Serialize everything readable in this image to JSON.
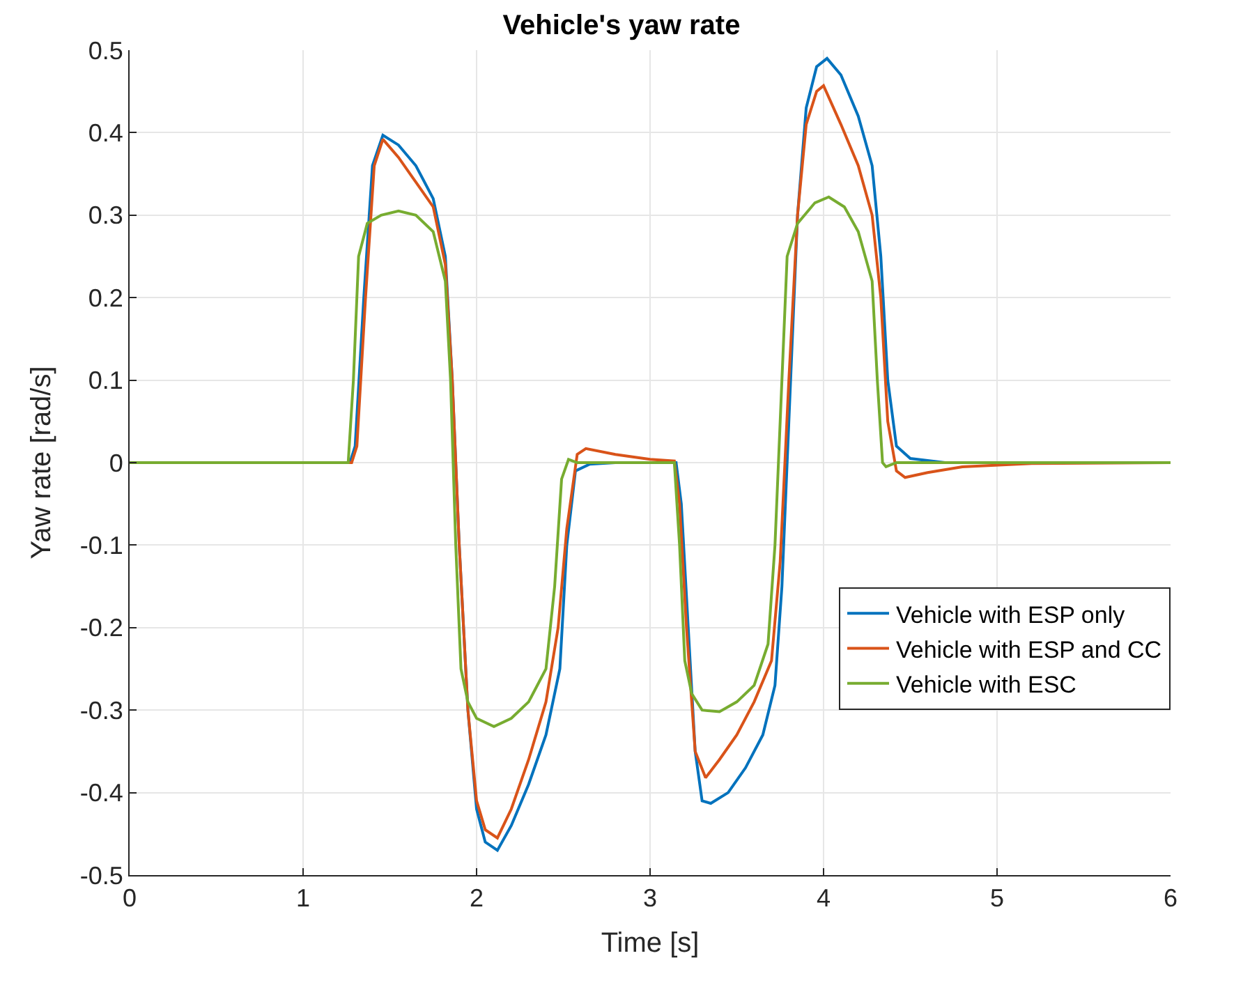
{
  "chart_data": {
    "type": "line",
    "title": "Vehicle's yaw rate",
    "xlabel": "Time [s]",
    "ylabel": "Yaw rate [rad/s]",
    "xlim": [
      0,
      6
    ],
    "xticks": [
      0,
      1,
      2,
      3,
      4,
      5,
      6
    ],
    "ylim": [
      -0.5,
      0.5
    ],
    "yticks": [
      -0.5,
      -0.4,
      -0.3,
      -0.2,
      -0.1,
      0,
      0.1,
      0.2,
      0.3,
      0.4,
      0.5
    ],
    "grid": true,
    "legend": "bottom right",
    "line_style": "solid",
    "series": [
      {
        "name": "Vehicle with ESP only",
        "color": "#0072bd",
        "x": [
          0,
          1.27,
          1.3,
          1.35,
          1.4,
          1.46,
          1.55,
          1.65,
          1.75,
          1.82,
          1.86,
          1.9,
          1.95,
          2.0,
          2.05,
          2.12,
          2.2,
          2.3,
          2.4,
          2.48,
          2.52,
          2.57,
          2.65,
          2.8,
          3.15,
          3.18,
          3.22,
          3.26,
          3.3,
          3.35,
          3.45,
          3.55,
          3.65,
          3.72,
          3.76,
          3.8,
          3.85,
          3.9,
          3.96,
          4.02,
          4.1,
          4.2,
          4.28,
          4.33,
          4.37,
          4.42,
          4.5,
          4.7,
          6
        ],
        "values": [
          0,
          0,
          0.02,
          0.2,
          0.36,
          0.397,
          0.385,
          0.36,
          0.32,
          0.25,
          0.1,
          -0.1,
          -0.3,
          -0.42,
          -0.46,
          -0.47,
          -0.44,
          -0.39,
          -0.33,
          -0.25,
          -0.1,
          -0.01,
          -0.002,
          0,
          0,
          -0.05,
          -0.2,
          -0.35,
          -0.41,
          -0.413,
          -0.4,
          -0.37,
          -0.33,
          -0.27,
          -0.15,
          0.05,
          0.3,
          0.43,
          0.48,
          0.49,
          0.47,
          0.42,
          0.36,
          0.25,
          0.1,
          0.02,
          0.005,
          0,
          0
        ]
      },
      {
        "name": "Vehicle with ESP and CC",
        "color": "#d95319",
        "x": [
          0,
          1.28,
          1.31,
          1.36,
          1.41,
          1.46,
          1.55,
          1.65,
          1.75,
          1.82,
          1.86,
          1.9,
          1.95,
          2.0,
          2.05,
          2.12,
          2.2,
          2.3,
          2.4,
          2.47,
          2.52,
          2.58,
          2.63,
          2.8,
          3.0,
          3.14,
          3.17,
          3.21,
          3.26,
          3.32,
          3.4,
          3.5,
          3.6,
          3.7,
          3.75,
          3.8,
          3.85,
          3.9,
          3.96,
          4.0,
          4.1,
          4.2,
          4.28,
          4.33,
          4.37,
          4.42,
          4.47,
          4.6,
          4.8,
          5.2,
          6
        ],
        "values": [
          0,
          0,
          0.02,
          0.2,
          0.36,
          0.392,
          0.37,
          0.34,
          0.31,
          0.24,
          0.1,
          -0.1,
          -0.3,
          -0.41,
          -0.445,
          -0.455,
          -0.42,
          -0.36,
          -0.29,
          -0.2,
          -0.08,
          0.01,
          0.017,
          0.01,
          0.004,
          0.002,
          -0.05,
          -0.2,
          -0.35,
          -0.382,
          -0.36,
          -0.33,
          -0.29,
          -0.24,
          -0.12,
          0.1,
          0.3,
          0.41,
          0.45,
          0.457,
          0.41,
          0.36,
          0.3,
          0.2,
          0.05,
          -0.01,
          -0.018,
          -0.012,
          -0.005,
          -0.001,
          0
        ]
      },
      {
        "name": "Vehicle with ESC",
        "color": "#77ac30",
        "x": [
          0,
          1.26,
          1.29,
          1.32,
          1.37,
          1.45,
          1.55,
          1.65,
          1.75,
          1.82,
          1.85,
          1.88,
          1.91,
          1.95,
          2.0,
          2.1,
          2.2,
          2.3,
          2.4,
          2.45,
          2.49,
          2.53,
          2.58,
          3.14,
          3.17,
          3.2,
          3.24,
          3.3,
          3.4,
          3.5,
          3.6,
          3.68,
          3.72,
          3.76,
          3.79,
          3.85,
          3.95,
          4.03,
          4.12,
          4.2,
          4.28,
          4.31,
          4.34,
          4.36,
          4.42,
          6
        ],
        "values": [
          0,
          0,
          0.1,
          0.25,
          0.29,
          0.3,
          0.305,
          0.3,
          0.28,
          0.22,
          0.1,
          -0.1,
          -0.25,
          -0.29,
          -0.31,
          -0.32,
          -0.31,
          -0.29,
          -0.25,
          -0.15,
          -0.02,
          0.004,
          0,
          0,
          -0.1,
          -0.24,
          -0.28,
          -0.3,
          -0.302,
          -0.29,
          -0.27,
          -0.22,
          -0.1,
          0.1,
          0.25,
          0.29,
          0.315,
          0.322,
          0.31,
          0.28,
          0.22,
          0.1,
          0,
          -0.005,
          0,
          0
        ]
      }
    ]
  }
}
